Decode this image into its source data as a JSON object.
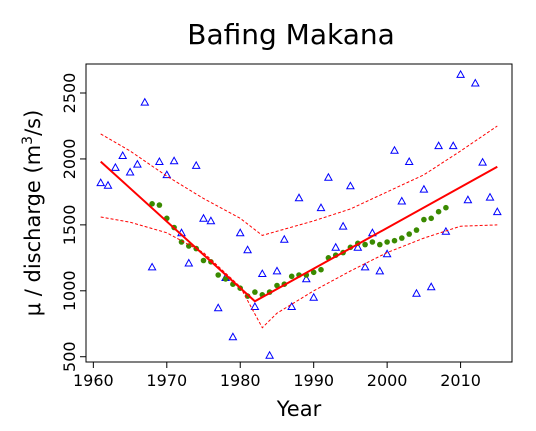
{
  "chart_data": {
    "type": "scatter",
    "title": "Bafing Makana",
    "xlabel": "Year",
    "ylabel_prefix": "μ / discharge (m",
    "ylabel_sup": "3",
    "ylabel_suffix": "/s)",
    "xlim": [
      1959,
      2017
    ],
    "ylim": [
      460,
      2720
    ],
    "x_ticks": [
      1960,
      1970,
      1980,
      1990,
      2000,
      2010
    ],
    "y_ticks": [
      500,
      1000,
      1500,
      2000,
      2500
    ],
    "grid": false,
    "legend": "none",
    "colors": {
      "observed": "#0000ff",
      "smooth": "#3a8a00",
      "fit": "#ff0000",
      "band": "#ff0000"
    },
    "series": [
      {
        "marker": "open-triangle",
        "x": [
          1961,
          1962,
          1963,
          1964,
          1965,
          1966,
          1967,
          1968,
          1969,
          1970,
          1971,
          1972,
          1973,
          1974,
          1975,
          1976,
          1977,
          1978,
          1979,
          1980,
          1981,
          1982,
          1983,
          1984,
          1985,
          1986,
          1987,
          1988,
          1989,
          1990,
          1991,
          1992,
          1993,
          1994,
          1995,
          1996,
          1997,
          1998,
          1999,
          2000,
          2001,
          2002,
          2003,
          2004,
          2005,
          2006,
          2007,
          2008,
          2009,
          2010,
          2011,
          2012,
          2013,
          2014,
          2015
        ],
        "y": [
          1820,
          1800,
          1935,
          2025,
          1900,
          1960,
          2430,
          1180,
          1980,
          1880,
          1985,
          1440,
          1210,
          1950,
          1550,
          1530,
          870,
          1100,
          650,
          1440,
          1310,
          880,
          1130,
          510,
          1150,
          1390,
          880,
          1705,
          1090,
          950,
          1630,
          1860,
          1330,
          1490,
          1795,
          1330,
          1180,
          1440,
          1150,
          1280,
          2065,
          1680,
          1980,
          980,
          1770,
          1030,
          2100,
          1450,
          2100,
          2640,
          1690,
          2575,
          1975,
          1710,
          1600
        ]
      },
      {
        "marker": "filled-circle",
        "x": [
          1968,
          1969,
          1970,
          1971,
          1972,
          1973,
          1974,
          1975,
          1976,
          1977,
          1978,
          1979,
          1980,
          1981,
          1982,
          1983,
          1984,
          1985,
          1986,
          1987,
          1988,
          1989,
          1990,
          1991,
          1992,
          1993,
          1994,
          1995,
          1996,
          1997,
          1998,
          1999,
          2000,
          2001,
          2002,
          2003,
          2004,
          2005,
          2006,
          2007,
          2008
        ],
        "y": [
          1660,
          1650,
          1550,
          1480,
          1370,
          1340,
          1320,
          1230,
          1220,
          1120,
          1090,
          1050,
          1020,
          960,
          990,
          970,
          990,
          1040,
          1050,
          1110,
          1120,
          1120,
          1140,
          1160,
          1250,
          1270,
          1290,
          1330,
          1360,
          1350,
          1370,
          1350,
          1370,
          1380,
          1400,
          1430,
          1460,
          1540,
          1550,
          1600,
          1630
        ]
      },
      {
        "marker": "line",
        "x": [
          1961,
          1982,
          2015
        ],
        "y": [
          1980,
          920,
          1940
        ]
      },
      {
        "marker": "dashed-line",
        "x": [
          1961,
          1965,
          1970,
          1975,
          1980,
          1983,
          1990,
          1995,
          2000,
          2005,
          2010,
          2015
        ],
        "y": [
          2190,
          2060,
          1870,
          1700,
          1550,
          1420,
          1530,
          1620,
          1750,
          1880,
          2060,
          2250
        ]
      },
      {
        "marker": "dashed-line",
        "x": [
          1961,
          1965,
          1970,
          1975,
          1980,
          1983,
          1985,
          1990,
          1995,
          2000,
          2005,
          2010,
          2015
        ],
        "y": [
          1560,
          1520,
          1440,
          1290,
          1030,
          720,
          830,
          1000,
          1150,
          1290,
          1400,
          1490,
          1500
        ]
      }
    ]
  }
}
